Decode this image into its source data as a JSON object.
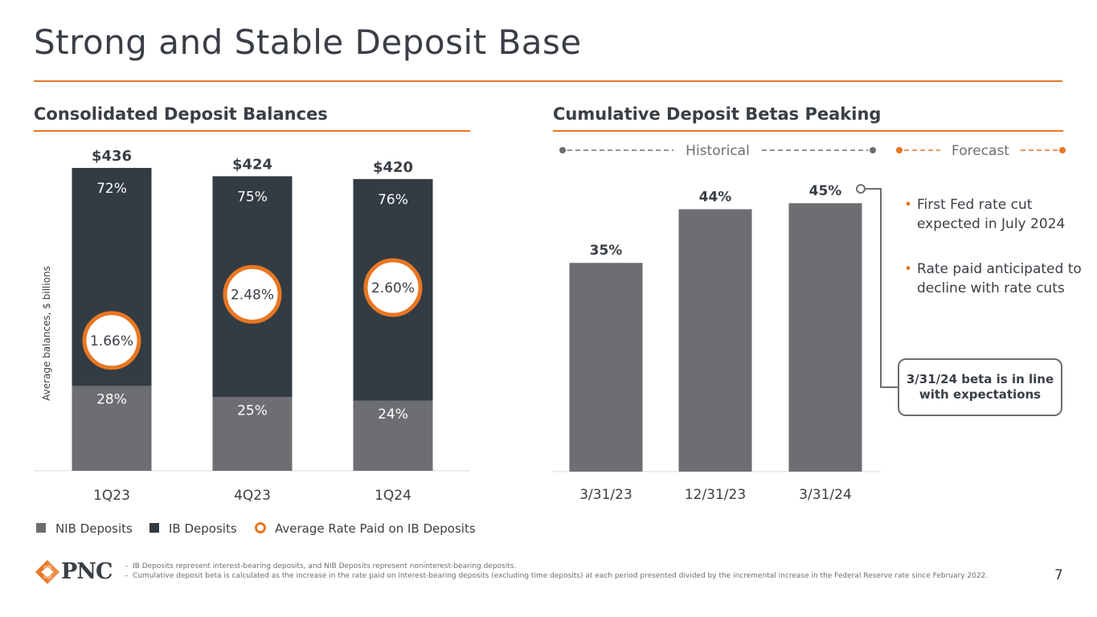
{
  "title": "Strong and Stable Deposit Base",
  "page_number": "7",
  "left_section": {
    "title": "Consolidated Deposit Balances",
    "y_axis_label": "Average balances, $ billions",
    "legend": [
      {
        "label": "NIB Deposits",
        "color": "#6d6e71",
        "marker": "square"
      },
      {
        "label": "IB Deposits",
        "color": "#333b43",
        "marker": "square"
      },
      {
        "label": "Average Rate Paid on IB Deposits",
        "color": "#e87722",
        "marker": "ring"
      }
    ]
  },
  "right_section": {
    "title": "Cumulative Deposit Betas Peaking",
    "historical_label": "Historical",
    "forecast_label": "Forecast",
    "bullets": [
      "First Fed rate cut expected in July 2024",
      "Rate paid anticipated to decline with rate cuts"
    ],
    "callout": "3/31/24  beta is in line with expectations"
  },
  "footnotes": [
    "IB Deposits represent interest-bearing deposits, and NIB Deposits represent noninterest-bearing deposits.",
    "Cumulative deposit beta is calculated as the increase in the rate paid on interest-bearing deposits (excluding time deposits) at each period presented divided by the incremental increase in the Federal Reserve rate since February 2022."
  ],
  "logo_text": "PNC",
  "chart_data": [
    {
      "type": "bar",
      "stacked": true,
      "title": "Consolidated Deposit Balances",
      "ylabel": "Average balances, $ billions",
      "categories": [
        "1Q23",
        "4Q23",
        "1Q24"
      ],
      "totals": [
        436,
        424,
        420
      ],
      "total_labels": [
        "$436",
        "$424",
        "$420"
      ],
      "ylim": [
        0,
        436
      ],
      "series": [
        {
          "name": "NIB Deposits",
          "color": "#6d6e71",
          "share": [
            28,
            25,
            24
          ],
          "labels": [
            "28%",
            "25%",
            "24%"
          ]
        },
        {
          "name": "IB Deposits",
          "color": "#333b43",
          "share": [
            72,
            75,
            76
          ],
          "labels": [
            "72%",
            "75%",
            "76%"
          ]
        }
      ],
      "rate_series": {
        "name": "Average Rate Paid on IB Deposits",
        "color": "#e87722",
        "values": [
          1.66,
          2.48,
          2.6
        ],
        "labels": [
          "1.66%",
          "2.48%",
          "2.60%"
        ]
      },
      "grid": false,
      "legend_position": "bottom"
    },
    {
      "type": "bar",
      "title": "Cumulative Deposit Betas Peaking",
      "categories": [
        "3/31/23",
        "12/31/23",
        "3/31/24"
      ],
      "values": [
        35,
        44,
        45
      ],
      "labels": [
        "35%",
        "44%",
        "45%"
      ],
      "ylim": [
        0,
        45
      ],
      "color": "#6d6e71",
      "grid": false
    }
  ]
}
